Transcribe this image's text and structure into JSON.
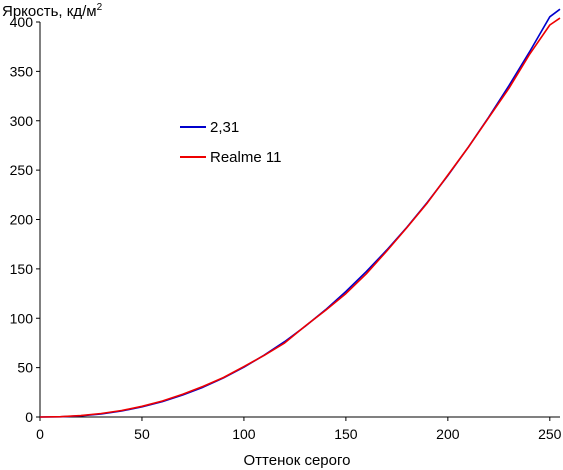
{
  "chart_data": {
    "type": "line",
    "title": "",
    "ylabel": "Яркость, кд/м",
    "ylabel_superscript": "2",
    "xlabel": "Оттенок серого",
    "xlim": [
      0,
      255
    ],
    "ylim": [
      0,
      400
    ],
    "xticks": [
      "0",
      "50",
      "100",
      "150",
      "200",
      "250"
    ],
    "yticks": [
      "0",
      "50",
      "100",
      "150",
      "200",
      "250",
      "300",
      "350",
      "400"
    ],
    "grid": false,
    "legend_placement": "upper-left-center",
    "series": [
      {
        "name": "2,31",
        "color": "#0000cc",
        "x": [
          0,
          10,
          20,
          30,
          40,
          50,
          60,
          70,
          80,
          90,
          100,
          110,
          120,
          130,
          140,
          150,
          160,
          170,
          180,
          190,
          200,
          210,
          220,
          230,
          240,
          250,
          255
        ],
        "y": [
          0,
          0.2,
          1.2,
          3.1,
          6.1,
          10.2,
          15.6,
          22.3,
          30.2,
          39.6,
          50.4,
          62.7,
          76.4,
          91.7,
          108.6,
          127.1,
          147.2,
          169.0,
          192.4,
          217.6,
          244.5,
          273.1,
          303.5,
          335.6,
          369.5,
          405.3,
          413.0
        ]
      },
      {
        "name": "Realme 11",
        "color": "#ee0000",
        "x": [
          0,
          10,
          20,
          30,
          40,
          50,
          60,
          70,
          80,
          90,
          100,
          110,
          120,
          130,
          140,
          150,
          160,
          170,
          180,
          190,
          200,
          210,
          220,
          230,
          240,
          250,
          255
        ],
        "y": [
          0,
          0.3,
          1.4,
          3.5,
          6.6,
          10.8,
          16.2,
          23.1,
          31.0,
          40.0,
          51.0,
          62.5,
          75.0,
          92.0,
          108.0,
          125.0,
          145.0,
          168.0,
          192.0,
          217.0,
          245.0,
          273.0,
          303.0,
          333.0,
          367.0,
          397.0,
          404.0
        ]
      }
    ]
  }
}
